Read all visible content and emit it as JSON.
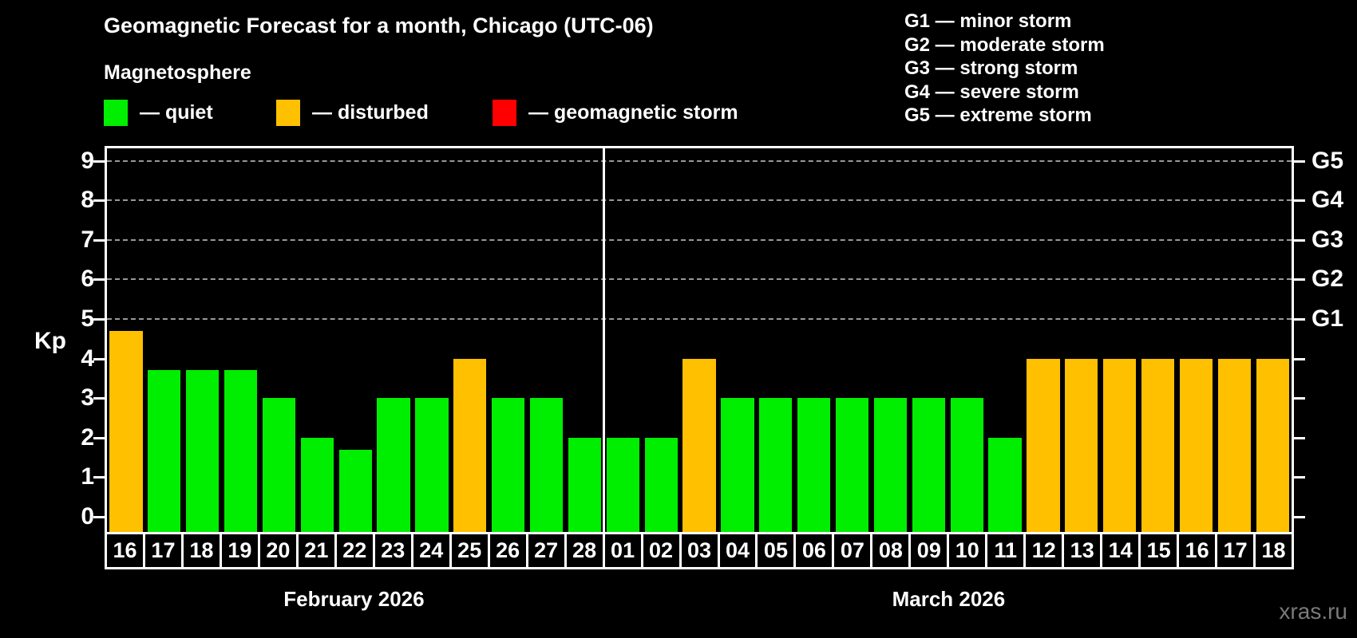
{
  "title": "Geomagnetic Forecast for a month, Chicago (UTC-06)",
  "subtitle": "Magnetosphere",
  "legend": {
    "quiet": {
      "label": "— quiet",
      "color": "#00ee00"
    },
    "disturbed": {
      "label": "— disturbed",
      "color": "#ffc000"
    },
    "storm": {
      "label": "— geomagnetic storm",
      "color": "#ff0000"
    }
  },
  "g_legend": {
    "lines": [
      "G1 — minor storm",
      "G2 — moderate storm",
      "G3 — strong storm",
      "G4 — severe storm",
      "G5 — extreme storm"
    ]
  },
  "watermark": "xras.ru",
  "chart_data": {
    "type": "bar",
    "title": "Geomagnetic Forecast for a month, Chicago (UTC-06)",
    "ylabel": "Kp",
    "ylim": [
      0,
      9
    ],
    "yticks": [
      0,
      1,
      2,
      3,
      4,
      5,
      6,
      7,
      8,
      9
    ],
    "gridlines": [
      5,
      6,
      7,
      8,
      9
    ],
    "grid_style": "dashed",
    "legend_position": "top",
    "right_axis_labels": [
      {
        "kp": 5,
        "label": "G1"
      },
      {
        "kp": 6,
        "label": "G2"
      },
      {
        "kp": 7,
        "label": "G3"
      },
      {
        "kp": 8,
        "label": "G4"
      },
      {
        "kp": 9,
        "label": "G5"
      }
    ],
    "months": [
      {
        "label": "February 2026",
        "days": 13
      },
      {
        "label": "March 2026",
        "days": 18
      }
    ],
    "categories": [
      "16",
      "17",
      "18",
      "19",
      "20",
      "21",
      "22",
      "23",
      "24",
      "25",
      "26",
      "27",
      "28",
      "01",
      "02",
      "03",
      "04",
      "05",
      "06",
      "07",
      "08",
      "09",
      "10",
      "11",
      "12",
      "13",
      "14",
      "15",
      "16",
      "17",
      "18"
    ],
    "series": [
      {
        "name": "Kp forecast",
        "values": [
          4.7,
          3.7,
          3.7,
          3.7,
          3,
          2,
          1.7,
          3,
          3,
          4,
          3,
          3,
          2,
          2,
          2,
          4,
          3,
          3,
          3,
          3,
          3,
          3,
          3,
          2,
          4,
          4,
          4,
          4,
          4,
          4,
          4
        ]
      }
    ],
    "statuses": [
      "disturbed",
      "quiet",
      "quiet",
      "quiet",
      "quiet",
      "quiet",
      "quiet",
      "quiet",
      "quiet",
      "disturbed",
      "quiet",
      "quiet",
      "quiet",
      "quiet",
      "quiet",
      "disturbed",
      "quiet",
      "quiet",
      "quiet",
      "quiet",
      "quiet",
      "quiet",
      "quiet",
      "quiet",
      "disturbed",
      "disturbed",
      "disturbed",
      "disturbed",
      "disturbed",
      "disturbed",
      "disturbed"
    ]
  }
}
